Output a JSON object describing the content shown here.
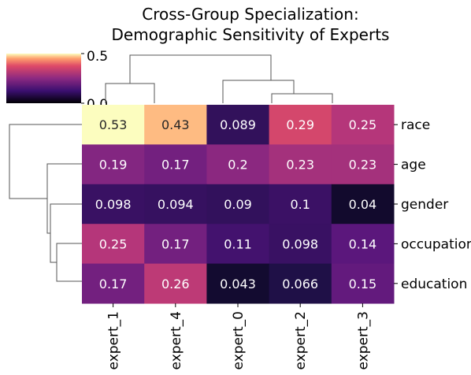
{
  "chart_data": {
    "type": "heatmap",
    "title_lines": [
      "Cross-Group Specialization:",
      "Demographic Sensitivity of Experts"
    ],
    "columns": [
      "expert_1",
      "expert_4",
      "expert_0",
      "expert_2",
      "expert_3"
    ],
    "rows": [
      "race",
      "age",
      "gender",
      "occupation",
      "education"
    ],
    "values": [
      [
        0.53,
        0.43,
        0.089,
        0.29,
        0.25
      ],
      [
        0.19,
        0.17,
        0.2,
        0.23,
        0.23
      ],
      [
        0.098,
        0.094,
        0.09,
        0.1,
        0.04
      ],
      [
        0.25,
        0.17,
        0.11,
        0.098,
        0.14
      ],
      [
        0.17,
        0.26,
        0.043,
        0.066,
        0.15
      ]
    ],
    "cell_labels": [
      [
        "0.53",
        "0.43",
        "0.089",
        "0.29",
        "0.25"
      ],
      [
        "0.19",
        "0.17",
        "0.2",
        "0.23",
        "0.23"
      ],
      [
        "0.098",
        "0.094",
        "0.09",
        "0.1",
        "0.04"
      ],
      [
        "0.25",
        "0.17",
        "0.11",
        "0.098",
        "0.14"
      ],
      [
        "0.17",
        "0.26",
        "0.043",
        "0.066",
        "0.15"
      ]
    ],
    "colormap": "magma",
    "vmin": 0.0,
    "vmax": 0.5,
    "colorbar_ticks": [
      "0.0",
      "0.5"
    ],
    "colorbar_placement": "top-left",
    "row_dendrogram": "left",
    "column_dendrogram": "top"
  }
}
